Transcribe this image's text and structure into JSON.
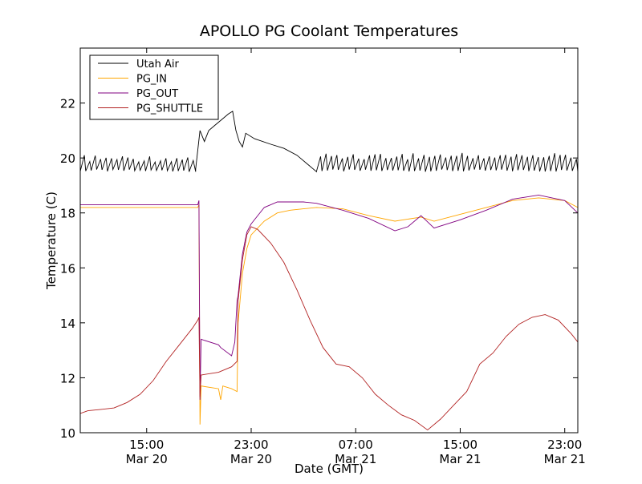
{
  "chart_data": {
    "type": "line",
    "title": "APOLLO PG Coolant Temperatures",
    "xlabel": "Date (GMT)",
    "ylabel": "Temperature (C)",
    "xlim": [
      "Mar 20 09:55",
      "Mar 22 00:00"
    ],
    "ylim": [
      10,
      24
    ],
    "yticks": [
      10,
      12,
      14,
      16,
      18,
      20,
      22
    ],
    "xticks": [
      {
        "x": "Mar 20 15:00",
        "time": "15:00",
        "date": "Mar 20"
      },
      {
        "x": "Mar 20 23:00",
        "time": "23:00",
        "date": "Mar 20"
      },
      {
        "x": "Mar 21 07:00",
        "time": "07:00",
        "date": "Mar 21"
      },
      {
        "x": "Mar 21 15:00",
        "time": "15:00",
        "date": "Mar 21"
      },
      {
        "x": "Mar 21 23:00",
        "time": "23:00",
        "date": "Mar 21"
      }
    ],
    "grid": false,
    "legend": "top-left",
    "series": [
      {
        "name": "Utah Air",
        "color": "#000000",
        "segments": [
          {
            "kind": "oscillating",
            "x_start": "Mar 20 09:55",
            "x_end": "Mar 20 18:45",
            "low": 19.5,
            "high": 20.1,
            "period_minutes": 25
          },
          {
            "kind": "points",
            "x": [
              "Mar 20 18:45",
              "Mar 20 19:05",
              "Mar 20 19:25",
              "Mar 20 19:45",
              "Mar 20 20:15",
              "Mar 20 20:45",
              "Mar 20 21:15",
              "Mar 20 21:35",
              "Mar 20 21:50",
              "Mar 20 22:05",
              "Mar 20 22:20",
              "Mar 20 22:35",
              "Mar 20 23:15",
              "Mar 21 00:30",
              "Mar 21 01:30",
              "Mar 21 02:30",
              "Mar 21 03:15",
              "Mar 21 04:00"
            ],
            "y": [
              19.6,
              21.0,
              20.6,
              21.0,
              21.2,
              21.4,
              21.6,
              21.7,
              21.0,
              20.6,
              20.4,
              20.9,
              20.7,
              20.5,
              20.35,
              20.1,
              19.8,
              19.5
            ]
          },
          {
            "kind": "oscillating",
            "x_start": "Mar 21 04:00",
            "x_end": "Mar 22 00:00",
            "low": 19.5,
            "high": 20.2,
            "period_minutes": 25
          }
        ]
      },
      {
        "name": "PG_IN",
        "color": "#ffa500",
        "x": [
          "Mar 20 09:55",
          "Mar 20 18:55",
          "Mar 20 19:00",
          "Mar 20 19:05",
          "Mar 20 19:10",
          "Mar 20 20:30",
          "Mar 20 20:40",
          "Mar 20 20:50",
          "Mar 20 21:30",
          "Mar 20 21:55",
          "Mar 20 22:00",
          "Mar 20 22:20",
          "Mar 20 22:40",
          "Mar 20 23:00",
          "Mar 21 00:00",
          "Mar 21 01:00",
          "Mar 21 02:00",
          "Mar 21 03:00",
          "Mar 21 04:00",
          "Mar 21 06:00",
          "Mar 21 08:00",
          "Mar 21 10:00",
          "Mar 21 12:00",
          "Mar 21 13:00",
          "Mar 21 15:00",
          "Mar 21 17:00",
          "Mar 21 19:00",
          "Mar 21 21:00",
          "Mar 21 23:00",
          "Mar 22 00:00"
        ],
        "y": [
          18.2,
          18.2,
          18.3,
          10.3,
          11.7,
          11.6,
          11.2,
          11.7,
          11.6,
          11.5,
          14.0,
          15.8,
          16.7,
          17.2,
          17.7,
          18.0,
          18.1,
          18.15,
          18.2,
          18.15,
          17.9,
          17.7,
          17.85,
          17.7,
          17.95,
          18.2,
          18.45,
          18.55,
          18.45,
          18.2
        ]
      },
      {
        "name": "PG_OUT",
        "color": "#800080",
        "x": [
          "Mar 20 09:55",
          "Mar 20 18:55",
          "Mar 20 19:00",
          "Mar 20 19:05",
          "Mar 20 19:10",
          "Mar 20 20:30",
          "Mar 20 20:40",
          "Mar 20 21:30",
          "Mar 20 21:45",
          "Mar 20 21:55",
          "Mar 20 22:00",
          "Mar 20 22:20",
          "Mar 20 22:40",
          "Mar 20 23:00",
          "Mar 21 00:00",
          "Mar 21 01:00",
          "Mar 21 02:00",
          "Mar 21 03:00",
          "Mar 21 04:00",
          "Mar 21 06:00",
          "Mar 21 08:00",
          "Mar 21 10:00",
          "Mar 21 11:00",
          "Mar 21 12:00",
          "Mar 21 13:00",
          "Mar 21 15:00",
          "Mar 21 17:00",
          "Mar 21 19:00",
          "Mar 21 21:00",
          "Mar 21 23:00",
          "Mar 22 00:00"
        ],
        "y": [
          18.3,
          18.3,
          18.45,
          11.2,
          13.4,
          13.2,
          13.1,
          12.8,
          13.3,
          14.8,
          15.0,
          16.5,
          17.3,
          17.6,
          18.2,
          18.4,
          18.4,
          18.4,
          18.35,
          18.1,
          17.8,
          17.35,
          17.5,
          17.9,
          17.45,
          17.75,
          18.1,
          18.5,
          18.65,
          18.45,
          18.0
        ]
      },
      {
        "name": "PG_SHUTTLE",
        "color": "#b22222",
        "x": [
          "Mar 20 09:55",
          "Mar 20 10:30",
          "Mar 20 11:30",
          "Mar 20 12:30",
          "Mar 20 13:30",
          "Mar 20 14:30",
          "Mar 20 15:30",
          "Mar 20 16:30",
          "Mar 20 17:30",
          "Mar 20 18:30",
          "Mar 20 18:55",
          "Mar 20 19:00",
          "Mar 20 19:05",
          "Mar 20 19:10",
          "Mar 20 20:30",
          "Mar 20 21:30",
          "Mar 20 21:55",
          "Mar 20 22:00",
          "Mar 20 22:20",
          "Mar 20 22:40",
          "Mar 20 23:00",
          "Mar 20 23:30",
          "Mar 21 00:30",
          "Mar 21 01:30",
          "Mar 21 02:30",
          "Mar 21 03:30",
          "Mar 21 04:30",
          "Mar 21 05:30",
          "Mar 21 06:30",
          "Mar 21 07:30",
          "Mar 21 08:30",
          "Mar 21 09:30",
          "Mar 21 10:30",
          "Mar 21 11:30",
          "Mar 21 12:30",
          "Mar 21 13:30",
          "Mar 21 14:30",
          "Mar 21 15:30",
          "Mar 21 16:30",
          "Mar 21 17:30",
          "Mar 21 18:30",
          "Mar 21 19:30",
          "Mar 21 20:30",
          "Mar 21 21:30",
          "Mar 21 22:30",
          "Mar 21 23:30",
          "Mar 22 00:00"
        ],
        "y": [
          10.7,
          10.8,
          10.85,
          10.9,
          11.1,
          11.4,
          11.9,
          12.6,
          13.2,
          13.8,
          14.1,
          14.2,
          11.3,
          12.1,
          12.2,
          12.4,
          12.6,
          14.8,
          16.3,
          17.2,
          17.5,
          17.4,
          16.9,
          16.2,
          15.2,
          14.1,
          13.1,
          12.5,
          12.4,
          12.0,
          11.4,
          11.0,
          10.65,
          10.45,
          10.1,
          10.5,
          11.0,
          11.5,
          12.5,
          12.9,
          13.5,
          13.95,
          14.2,
          14.3,
          14.1,
          13.6,
          13.3
        ]
      }
    ]
  }
}
